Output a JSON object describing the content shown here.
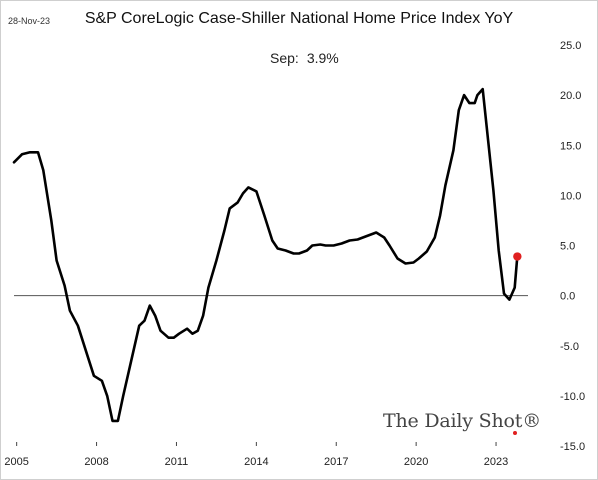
{
  "header": {
    "date": "28-Nov-23",
    "title": "S&P CoreLogic Case-Shiller National Home Price Index YoY"
  },
  "annotation": {
    "label": "Sep:",
    "value": "3.9%"
  },
  "brand": "The Daily Shot®",
  "colors": {
    "line": "#000000",
    "marker": "#e02020",
    "zero_line": "#555555"
  },
  "chart_data": {
    "type": "line",
    "title": "S&P CoreLogic Case-Shiller National Home Price Index YoY",
    "xlabel": "",
    "ylabel": "",
    "x_ticks": [
      "2005",
      "2008",
      "2011",
      "2014",
      "2017",
      "2020",
      "2023"
    ],
    "x_tick_years": [
      2005,
      2008,
      2011,
      2014,
      2017,
      2020,
      2023
    ],
    "xlim": [
      2004.9,
      2024.2
    ],
    "y_ticks": [
      "25.0",
      "20.0",
      "15.0",
      "10.0",
      "5.0",
      "0.0",
      "-5.0",
      "-10.0",
      "-15.0"
    ],
    "y_tick_values": [
      25,
      20,
      15,
      10,
      5,
      0,
      -5,
      -10,
      -15
    ],
    "ylim": [
      -15,
      25
    ],
    "y_axis_side": "right",
    "grid": false,
    "series": [
      {
        "values": [
          [
            2004.9,
            13.3
          ],
          [
            2005.2,
            14.1
          ],
          [
            2005.5,
            14.3
          ],
          [
            2005.8,
            14.3
          ],
          [
            2006.0,
            12.5
          ],
          [
            2006.3,
            7.5
          ],
          [
            2006.5,
            3.5
          ],
          [
            2006.8,
            1.0
          ],
          [
            2007.0,
            -1.5
          ],
          [
            2007.3,
            -3.0
          ],
          [
            2007.6,
            -5.5
          ],
          [
            2007.9,
            -8.0
          ],
          [
            2008.2,
            -8.5
          ],
          [
            2008.4,
            -10.0
          ],
          [
            2008.6,
            -12.5
          ],
          [
            2008.8,
            -12.5
          ],
          [
            2009.0,
            -10.0
          ],
          [
            2009.3,
            -6.5
          ],
          [
            2009.6,
            -3.0
          ],
          [
            2009.8,
            -2.5
          ],
          [
            2010.0,
            -1.0
          ],
          [
            2010.2,
            -2.0
          ],
          [
            2010.4,
            -3.5
          ],
          [
            2010.7,
            -4.2
          ],
          [
            2010.9,
            -4.2
          ],
          [
            2011.1,
            -3.8
          ],
          [
            2011.4,
            -3.3
          ],
          [
            2011.6,
            -3.8
          ],
          [
            2011.8,
            -3.5
          ],
          [
            2012.0,
            -2.0
          ],
          [
            2012.2,
            0.8
          ],
          [
            2012.5,
            3.5
          ],
          [
            2012.8,
            6.5
          ],
          [
            2013.0,
            8.7
          ],
          [
            2013.3,
            9.3
          ],
          [
            2013.5,
            10.2
          ],
          [
            2013.7,
            10.8
          ],
          [
            2014.0,
            10.4
          ],
          [
            2014.3,
            8.0
          ],
          [
            2014.6,
            5.5
          ],
          [
            2014.8,
            4.7
          ],
          [
            2015.1,
            4.5
          ],
          [
            2015.4,
            4.2
          ],
          [
            2015.6,
            4.2
          ],
          [
            2015.9,
            4.5
          ],
          [
            2016.1,
            5.0
          ],
          [
            2016.4,
            5.1
          ],
          [
            2016.6,
            5.0
          ],
          [
            2016.9,
            5.0
          ],
          [
            2017.2,
            5.2
          ],
          [
            2017.5,
            5.5
          ],
          [
            2017.8,
            5.6
          ],
          [
            2018.0,
            5.8
          ],
          [
            2018.3,
            6.1
          ],
          [
            2018.5,
            6.3
          ],
          [
            2018.8,
            5.8
          ],
          [
            2019.0,
            5.0
          ],
          [
            2019.3,
            3.7
          ],
          [
            2019.6,
            3.2
          ],
          [
            2019.9,
            3.3
          ],
          [
            2020.1,
            3.7
          ],
          [
            2020.4,
            4.4
          ],
          [
            2020.7,
            5.8
          ],
          [
            2020.9,
            8.0
          ],
          [
            2021.1,
            11.0
          ],
          [
            2021.4,
            14.5
          ],
          [
            2021.6,
            18.5
          ],
          [
            2021.8,
            20.0
          ],
          [
            2022.0,
            19.2
          ],
          [
            2022.2,
            19.2
          ],
          [
            2022.3,
            20.0
          ],
          [
            2022.5,
            20.6
          ],
          [
            2022.7,
            15.5
          ],
          [
            2022.9,
            10.5
          ],
          [
            2023.1,
            4.5
          ],
          [
            2023.3,
            0.2
          ],
          [
            2023.5,
            -0.4
          ],
          [
            2023.7,
            0.8
          ],
          [
            2023.8,
            3.9
          ]
        ]
      }
    ],
    "last_point": {
      "x": 2023.8,
      "y": 3.9,
      "label": "Sep: 3.9%"
    }
  }
}
